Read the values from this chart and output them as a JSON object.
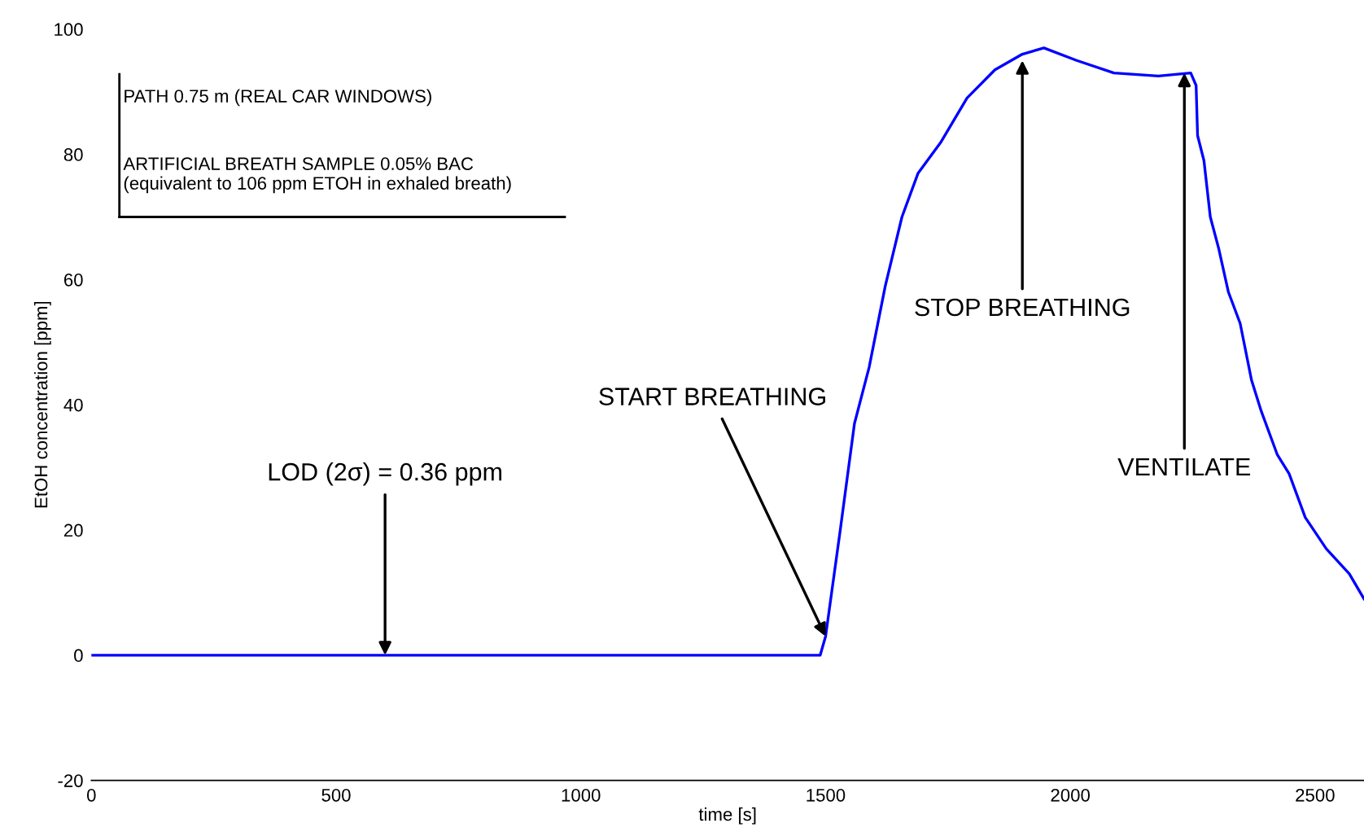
{
  "chart_data": {
    "type": "line",
    "xlabel": "time [s]",
    "ylabel": "EtOH concentration [ppm]",
    "xlim": [
      0,
      2600
    ],
    "ylim": [
      -20,
      100
    ],
    "xticks": [
      0,
      500,
      1000,
      1500,
      2000,
      2500
    ],
    "yticks": [
      -20,
      0,
      20,
      40,
      60,
      80,
      100
    ],
    "grid": false,
    "marker": "none",
    "line_style": "solid",
    "series": [
      {
        "color": "#0000ff",
        "x": [
          0,
          200,
          400,
          600,
          800,
          1000,
          1200,
          1400,
          1489,
          1500,
          1530,
          1559,
          1589,
          1622,
          1656,
          1689,
          1736,
          1789,
          1846,
          1902,
          1946,
          2013,
          2089,
          2180,
          2246,
          2257,
          2260,
          2273,
          2286,
          2303,
          2323,
          2347,
          2370,
          2390,
          2423,
          2447,
          2480,
          2523,
          2570,
          2600
        ],
        "values": [
          0,
          0,
          0,
          0,
          0,
          0,
          0,
          0,
          0,
          3,
          20,
          37,
          46,
          59,
          70,
          77,
          82,
          89,
          93.5,
          96,
          97,
          95,
          93,
          92.5,
          93,
          91,
          83,
          79,
          70,
          65,
          58,
          53,
          44,
          39,
          32,
          29,
          22,
          17,
          13,
          9
        ]
      }
    ],
    "annotations": [
      {
        "text": "LOD (2σ) = 0.36 ppm",
        "x": 600,
        "y": 0
      },
      {
        "text": "START BREATHING",
        "x": 1500,
        "y": 3
      },
      {
        "text": "STOP BREATHING",
        "x": 1902,
        "y": 95
      },
      {
        "text": "VENTILATE",
        "x": 2233,
        "y": 93
      },
      "PATH 0.75 m (REAL CAR WINDOWS)",
      "ARTIFICIAL BREATH SAMPLE 0.05% BAC\n(equivalent to 106 ppm ETOH in exhaled breath)"
    ]
  }
}
